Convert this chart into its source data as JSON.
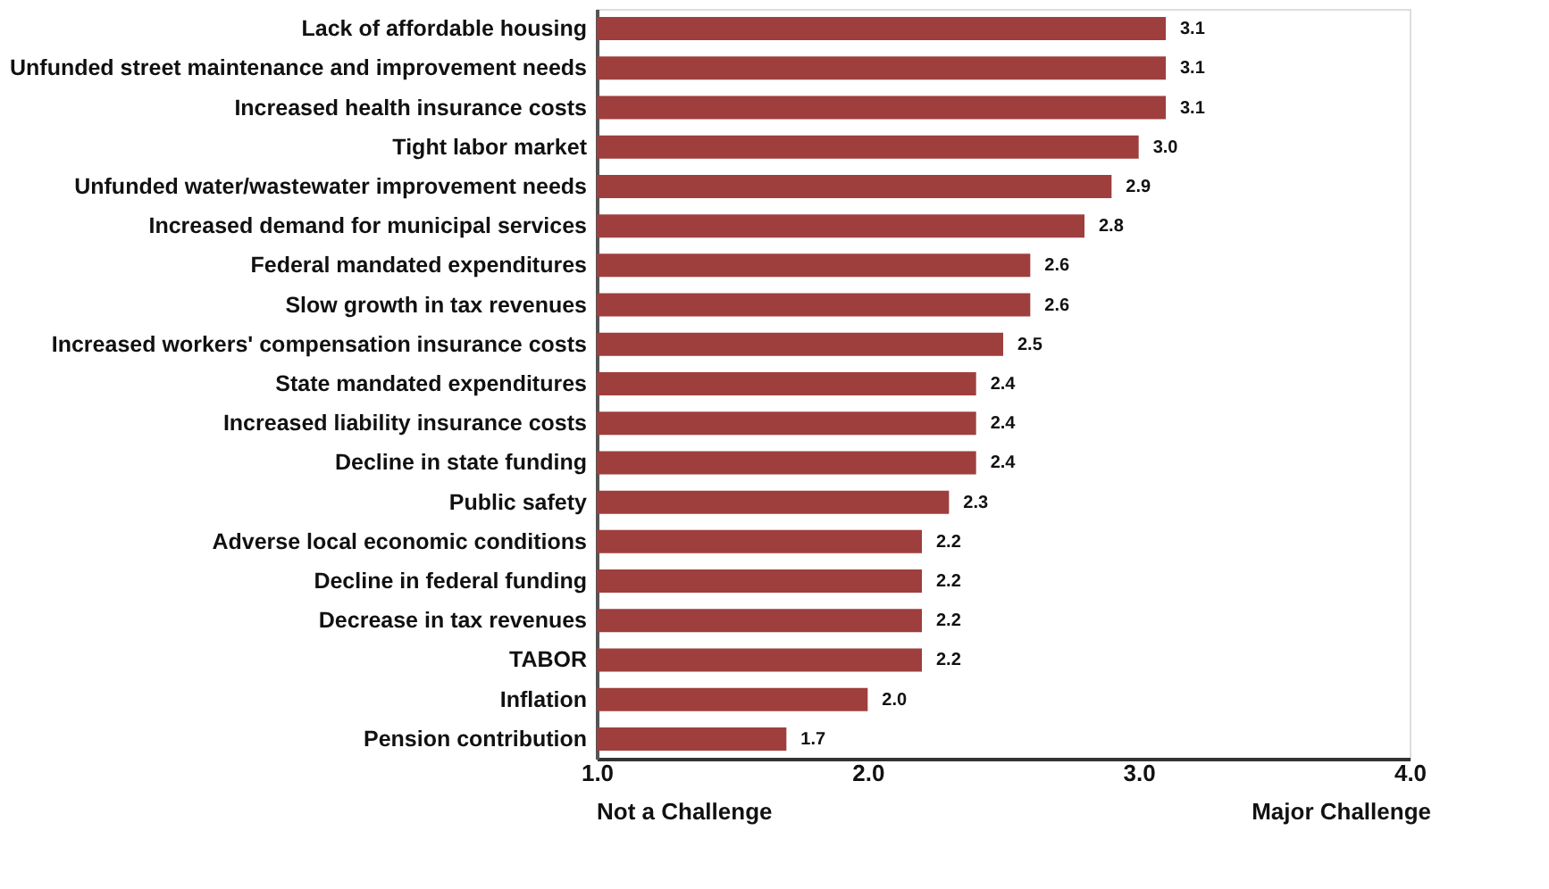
{
  "chart_data": {
    "type": "bar",
    "orientation": "horizontal",
    "categories": [
      "Lack of affordable housing",
      "Unfunded street maintenance and improvement needs",
      "Increased health insurance costs",
      "Tight labor market",
      "Unfunded water/wastewater improvement needs",
      "Increased demand for municipal services",
      "Federal mandated expenditures",
      "Slow growth in tax revenues",
      "Increased workers' compensation insurance costs",
      "State mandated expenditures",
      "Increased liability insurance costs",
      "Decline in state funding",
      "Public safety",
      "Adverse local economic conditions",
      "Decline in federal funding",
      "Decrease in tax revenues",
      "TABOR",
      "Inflation",
      "Pension contribution"
    ],
    "values": [
      3.1,
      3.1,
      3.1,
      3.0,
      2.9,
      2.8,
      2.6,
      2.6,
      2.5,
      2.4,
      2.4,
      2.4,
      2.3,
      2.2,
      2.2,
      2.2,
      2.2,
      2.0,
      1.7
    ],
    "color": "#9e3f3d",
    "xlim": [
      1.0,
      4.0
    ],
    "xticks": [
      {
        "value": 1,
        "label": "1.0"
      },
      {
        "value": 2,
        "label": "2.0"
      },
      {
        "value": 3,
        "label": "3.0"
      },
      {
        "value": 4,
        "label": "4.0"
      }
    ],
    "value_labels": [
      "3.1",
      "3.1",
      "3.1",
      "3.0",
      "2.9",
      "2.8",
      "2.6",
      "2.6",
      "2.5",
      "2.4",
      "2.4",
      "2.4",
      "2.3",
      "2.2",
      "2.2",
      "2.2",
      "2.2",
      "2.0",
      "1.7"
    ],
    "grid": false,
    "annotations": [
      "Not a Challenge",
      "Major Challenge"
    ]
  }
}
